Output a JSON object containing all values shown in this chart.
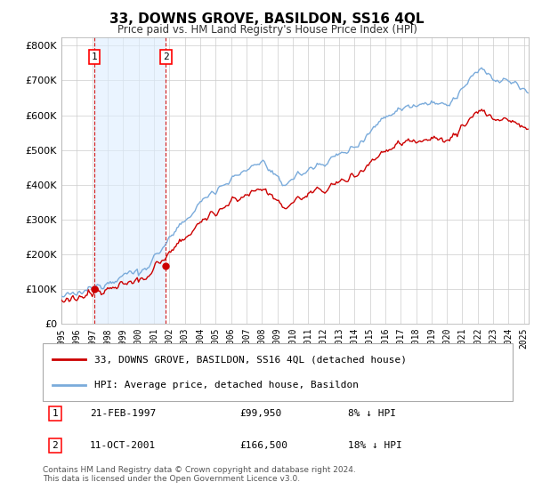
{
  "title": "33, DOWNS GROVE, BASILDON, SS16 4QL",
  "subtitle": "Price paid vs. HM Land Registry's House Price Index (HPI)",
  "legend_entry1": "33, DOWNS GROVE, BASILDON, SS16 4QL (detached house)",
  "legend_entry2": "HPI: Average price, detached house, Basildon",
  "transaction1_date": "21-FEB-1997",
  "transaction1_price": 99950,
  "transaction1_label": "1",
  "transaction1_year": 1997.13,
  "transaction2_date": "11-OCT-2001",
  "transaction2_price": 166500,
  "transaction2_label": "2",
  "transaction2_year": 2001.78,
  "t1_info": "8% ↓ HPI",
  "t2_info": "18% ↓ HPI",
  "footer": "Contains HM Land Registry data © Crown copyright and database right 2024.\nThis data is licensed under the Open Government Licence v3.0.",
  "red_color": "#cc0000",
  "blue_color": "#7aabdb",
  "bg_color": "#ddeeff",
  "ylim_max": 800000,
  "xlim_start": 1995.0,
  "xlim_end": 2025.3
}
